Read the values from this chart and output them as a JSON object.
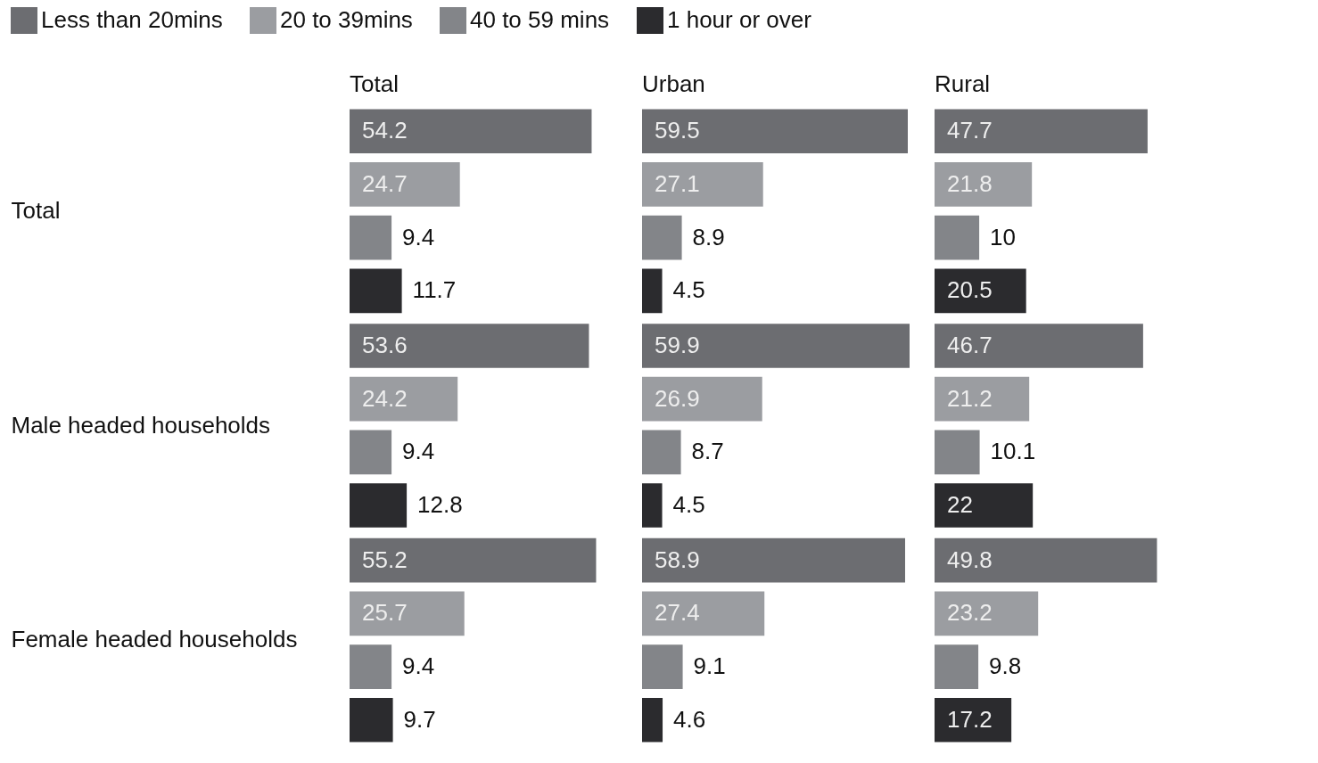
{
  "chart_data": [
    {
      "type": "bar",
      "orientation": "horizontal",
      "title": "Total",
      "categories": [
        "Total",
        "Male headed households",
        "Female headed households"
      ],
      "data_labels": true,
      "legend": "top",
      "tick_labels": "y",
      "series": [
        {
          "name": "Less than 20mins",
          "color": "#6c6d71",
          "values": [
            54.2,
            53.6,
            55.2
          ]
        },
        {
          "name": "20 to 39mins",
          "color": "#9b9da1",
          "values": [
            24.7,
            24.2,
            25.7
          ]
        },
        {
          "name": "40 to 59 mins",
          "color": "#838589",
          "values": [
            9.4,
            9.4,
            9.4
          ]
        },
        {
          "name": "1 hour or over",
          "color": "#2b2b2e",
          "values": [
            11.7,
            12.8,
            9.7
          ]
        }
      ]
    },
    {
      "type": "bar",
      "orientation": "horizontal",
      "title": "Urban",
      "categories": [
        "Total",
        "Male headed households",
        "Female headed households"
      ],
      "data_labels": true,
      "tick_labels": false,
      "series": [
        {
          "name": "Less than 20mins",
          "color": "#6c6d71",
          "values": [
            59.5,
            59.9,
            58.9
          ]
        },
        {
          "name": "20 to 39mins",
          "color": "#9b9da1",
          "values": [
            27.1,
            26.9,
            27.4
          ]
        },
        {
          "name": "40 to 59 mins",
          "color": "#838589",
          "values": [
            8.9,
            8.7,
            9.1
          ]
        },
        {
          "name": "1 hour or over",
          "color": "#2b2b2e",
          "values": [
            4.5,
            4.5,
            4.6
          ]
        }
      ]
    },
    {
      "type": "bar",
      "orientation": "horizontal",
      "title": "Rural",
      "categories": [
        "Total",
        "Male headed households",
        "Female headed households"
      ],
      "data_labels": true,
      "tick_labels": false,
      "series": [
        {
          "name": "Less than 20mins",
          "color": "#6c6d71",
          "values": [
            47.7,
            46.7,
            49.8
          ]
        },
        {
          "name": "20 to 39mins",
          "color": "#9b9da1",
          "values": [
            21.8,
            21.2,
            23.2
          ]
        },
        {
          "name": "40 to 59 mins",
          "color": "#838589",
          "values": [
            10,
            10.1,
            9.8
          ]
        },
        {
          "name": "1 hour or over",
          "color": "#2b2b2e",
          "values": [
            20.5,
            22,
            17.2
          ]
        }
      ]
    }
  ]
}
